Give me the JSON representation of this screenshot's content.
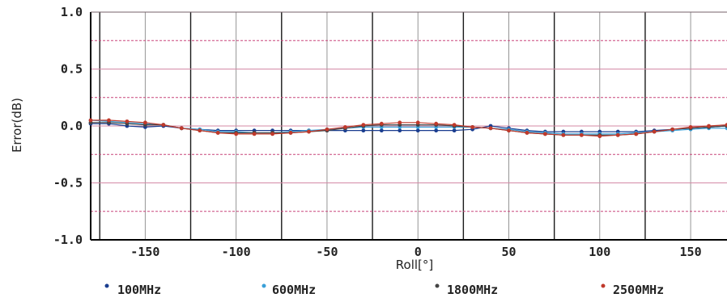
{
  "chart_data": {
    "type": "line",
    "xlabel": "Roll[°]",
    "ylabel": "Error(dB)",
    "xlim": [
      -180,
      170
    ],
    "ylim": [
      -1.0,
      1.0
    ],
    "xticks": [
      -150,
      -100,
      -50,
      0,
      50,
      100,
      150
    ],
    "xtick_labels": [
      "-150",
      "-100",
      "-50",
      "0",
      "50",
      "100",
      "150"
    ],
    "yticks": [
      1.0,
      0.5,
      0.0,
      -0.5,
      -1.0
    ],
    "ytick_labels": [
      "1.0",
      "0.5",
      "0.0",
      "-0.5",
      "-1.0"
    ],
    "minor_yticks": [
      0.75,
      0.25,
      -0.25,
      -0.75
    ],
    "legend_position": "bottom",
    "x": [
      -180,
      -170,
      -160,
      -150,
      -140,
      -130,
      -120,
      -110,
      -100,
      -90,
      -80,
      -70,
      -60,
      -50,
      -40,
      -30,
      -20,
      -10,
      0,
      10,
      20,
      30,
      40,
      50,
      60,
      70,
      80,
      90,
      100,
      110,
      120,
      130,
      140,
      150,
      160,
      170
    ],
    "series": [
      {
        "name": "100MHz",
        "color": "#1a3d8f",
        "values": [
          0.02,
          0.02,
          0.0,
          -0.01,
          0.0,
          -0.02,
          -0.03,
          -0.04,
          -0.04,
          -0.04,
          -0.04,
          -0.04,
          -0.04,
          -0.04,
          -0.04,
          -0.04,
          -0.04,
          -0.04,
          -0.04,
          -0.04,
          -0.04,
          -0.03,
          0.0,
          -0.02,
          -0.04,
          -0.05,
          -0.05,
          -0.05,
          -0.05,
          -0.05,
          -0.05,
          -0.04,
          -0.03,
          -0.02,
          -0.01,
          0.0
        ]
      },
      {
        "name": "600MHz",
        "color": "#3aa0d8",
        "values": [
          0.05,
          0.04,
          0.03,
          0.02,
          0.01,
          -0.02,
          -0.03,
          -0.05,
          -0.05,
          -0.06,
          -0.06,
          -0.05,
          -0.04,
          -0.03,
          -0.02,
          -0.01,
          -0.01,
          -0.01,
          -0.01,
          -0.01,
          -0.01,
          -0.01,
          -0.02,
          -0.03,
          -0.05,
          -0.06,
          -0.07,
          -0.07,
          -0.07,
          -0.07,
          -0.06,
          -0.05,
          -0.04,
          -0.03,
          -0.02,
          -0.02
        ]
      },
      {
        "name": "1800MHz",
        "color": "#444444",
        "values": [
          0.03,
          0.03,
          0.02,
          0.01,
          0.01,
          -0.02,
          -0.04,
          -0.06,
          -0.06,
          -0.06,
          -0.06,
          -0.06,
          -0.05,
          -0.04,
          -0.02,
          0.0,
          0.01,
          0.01,
          0.01,
          0.01,
          0.0,
          -0.01,
          -0.02,
          -0.04,
          -0.06,
          -0.07,
          -0.08,
          -0.08,
          -0.08,
          -0.08,
          -0.07,
          -0.05,
          -0.03,
          -0.02,
          -0.01,
          0.0
        ]
      },
      {
        "name": "2500MHz",
        "color": "#c0392b",
        "values": [
          0.05,
          0.05,
          0.04,
          0.03,
          0.01,
          -0.02,
          -0.04,
          -0.06,
          -0.07,
          -0.07,
          -0.07,
          -0.06,
          -0.05,
          -0.03,
          -0.01,
          0.01,
          0.02,
          0.03,
          0.03,
          0.02,
          0.01,
          -0.01,
          -0.02,
          -0.04,
          -0.06,
          -0.07,
          -0.08,
          -0.08,
          -0.09,
          -0.08,
          -0.07,
          -0.05,
          -0.03,
          -0.01,
          0.0,
          0.01
        ]
      }
    ]
  }
}
